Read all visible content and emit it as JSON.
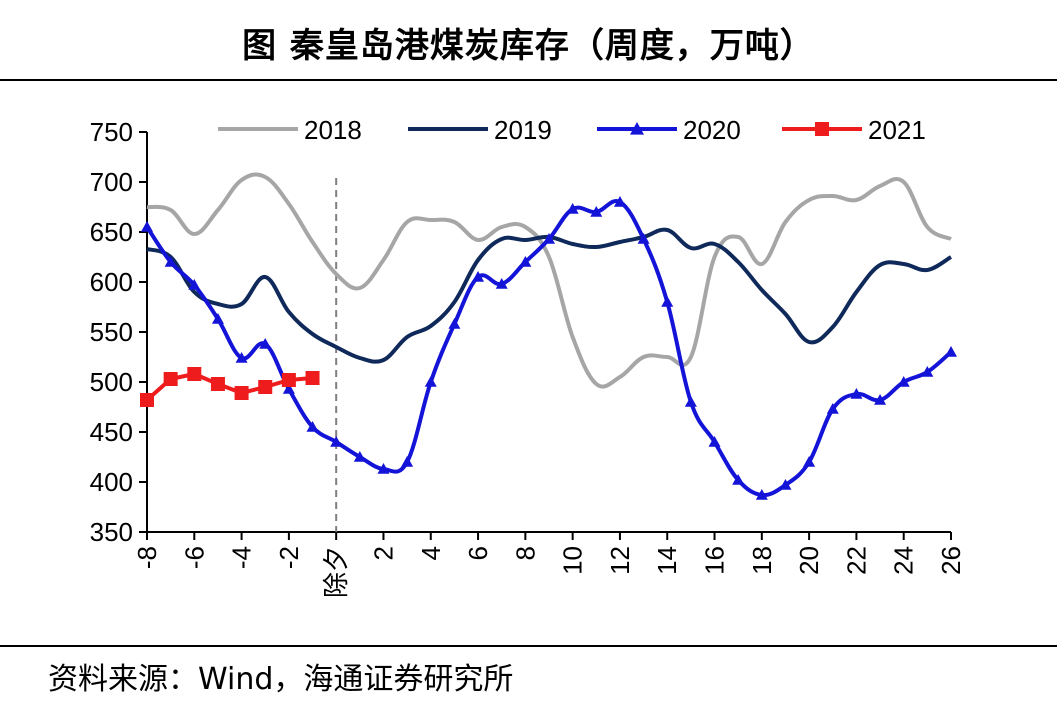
{
  "header": {
    "title": "图 秦皇岛港煤炭库存（周度，万吨）"
  },
  "footer": {
    "source": "资料来源：Wind，海通证券研究所"
  },
  "chart_data": {
    "type": "line",
    "title": "图 秦皇岛港煤炭库存（周度，万吨）",
    "xlabel": "",
    "ylabel": "",
    "ylim": [
      350,
      750
    ],
    "yticks": [
      350,
      400,
      450,
      500,
      550,
      600,
      650,
      700,
      750
    ],
    "xlim": [
      -8,
      26
    ],
    "xticks": [
      "-8",
      "-6",
      "-4",
      "-2",
      "除夕",
      "2",
      "4",
      "6",
      "8",
      "10",
      "12",
      "14",
      "16",
      "18",
      "20",
      "22",
      "24",
      "26"
    ],
    "xtick_values": [
      -8,
      -6,
      -4,
      -2,
      0,
      2,
      4,
      6,
      8,
      10,
      12,
      14,
      16,
      18,
      20,
      22,
      24,
      26
    ],
    "reference_line_x": 0,
    "grid": false,
    "legend_position": "top",
    "series": [
      {
        "name": "2018",
        "color": "#a6a6a6",
        "marker": "none",
        "x": [
          -8,
          -7,
          -6,
          -5,
          -4,
          -3,
          -2,
          -1,
          0,
          1,
          2,
          3,
          4,
          5,
          6,
          7,
          8,
          9,
          10,
          11,
          12,
          13,
          14,
          15,
          16,
          17,
          18,
          19,
          20,
          21,
          22,
          23,
          24,
          25,
          26
        ],
        "values": [
          675,
          672,
          648,
          672,
          702,
          705,
          678,
          640,
          608,
          594,
          622,
          660,
          662,
          660,
          642,
          655,
          655,
          625,
          545,
          498,
          505,
          525,
          525,
          525,
          625,
          645,
          618,
          660,
          682,
          686,
          682,
          696,
          700,
          655,
          643
        ]
      },
      {
        "name": "2019",
        "color": "#0f2a5a",
        "marker": "none",
        "x": [
          -8,
          -7,
          -6,
          -5,
          -4,
          -3,
          -2,
          -1,
          0,
          1,
          2,
          3,
          4,
          5,
          6,
          7,
          8,
          9,
          10,
          11,
          12,
          13,
          14,
          15,
          16,
          17,
          18,
          19,
          20,
          21,
          22,
          23,
          24,
          25,
          26
        ],
        "values": [
          633,
          625,
          590,
          578,
          578,
          605,
          570,
          548,
          535,
          524,
          522,
          545,
          556,
          580,
          622,
          643,
          642,
          645,
          638,
          635,
          640,
          645,
          652,
          634,
          638,
          620,
          592,
          568,
          540,
          555,
          590,
          617,
          618,
          612,
          625
        ]
      },
      {
        "name": "2020",
        "color": "#1414d8",
        "marker": "triangle",
        "x": [
          -8,
          -7,
          -6,
          -5,
          -4,
          -3,
          -2,
          -1,
          0,
          1,
          2,
          3,
          4,
          5,
          6,
          7,
          8,
          9,
          10,
          11,
          12,
          13,
          14,
          15,
          16,
          17,
          18,
          19,
          20,
          21,
          22,
          23,
          24,
          25,
          26
        ],
        "values": [
          655,
          620,
          597,
          563,
          524,
          538,
          493,
          455,
          440,
          425,
          413,
          420,
          500,
          558,
          605,
          598,
          620,
          643,
          673,
          670,
          680,
          643,
          580,
          480,
          440,
          402,
          387,
          397,
          420,
          473,
          488,
          482,
          500,
          510,
          530
        ]
      },
      {
        "name": "2021",
        "color": "#ee1c1c",
        "marker": "square",
        "x": [
          -8,
          -7,
          -6,
          -5,
          -4,
          -3,
          -2,
          -1
        ],
        "values": [
          482,
          503,
          508,
          498,
          489,
          495,
          502,
          504
        ]
      }
    ]
  }
}
